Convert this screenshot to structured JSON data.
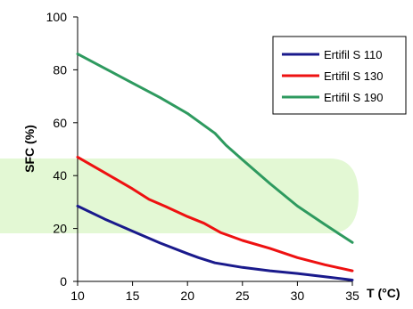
{
  "chart_data": {
    "type": "line",
    "xlabel": "T (°C)",
    "ylabel": "SFC (%)",
    "xlim": [
      10,
      35
    ],
    "ylim": [
      0,
      100
    ],
    "xticks": [
      10,
      15,
      20,
      25,
      30,
      35
    ],
    "yticks": [
      0,
      20,
      40,
      60,
      80,
      100
    ],
    "grid": false,
    "legend_position": "top-right",
    "series": [
      {
        "name": "Ertifil S 110",
        "color": "#1a1a8c",
        "x": [
          10,
          12.5,
          15,
          17.5,
          20,
          21,
          22.5,
          25,
          27.5,
          30,
          32.5,
          35
        ],
        "y": [
          28.5,
          23.5,
          19,
          14.5,
          10.5,
          9,
          7,
          5.3,
          4,
          3,
          1.8,
          0.5
        ]
      },
      {
        "name": "Ertifil S 130",
        "color": "#ee1111",
        "x": [
          10,
          12.5,
          15,
          16.5,
          18,
          20,
          21.5,
          23,
          25,
          27.5,
          30,
          32.5,
          35
        ],
        "y": [
          47,
          41,
          35,
          31,
          28.3,
          24.5,
          22,
          18.5,
          15.5,
          12.5,
          9,
          6.3,
          4
        ]
      },
      {
        "name": "Ertifil S 190",
        "color": "#2e9a5f",
        "x": [
          10,
          12.5,
          15,
          17.5,
          20,
          21,
          22.5,
          23.5,
          25,
          27.5,
          30,
          32.5,
          35
        ],
        "y": [
          86,
          80.5,
          75,
          69.5,
          63.5,
          60.5,
          56,
          51.5,
          46,
          37,
          28.5,
          21.5,
          14.7
        ]
      }
    ]
  }
}
